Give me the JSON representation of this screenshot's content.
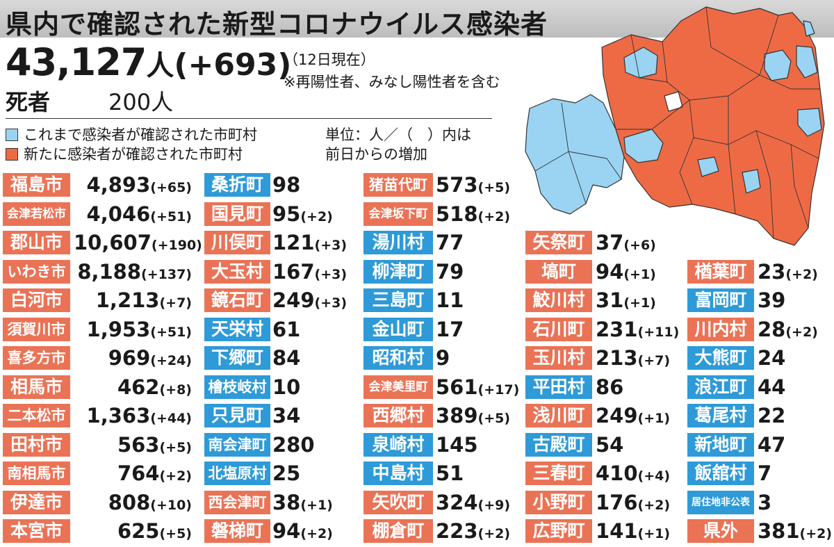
{
  "title": "県内で確認された新型コロナウイルス感染者",
  "total": {
    "count": "43,127",
    "unit": "人",
    "diff": "(+693)"
  },
  "as_of": "（12日現在）",
  "note": "※再陽性者、みなし陽性者を含む",
  "deaths": {
    "label": "死者",
    "value": "200人"
  },
  "legend": {
    "existing": "これまで感染者が確認された市町村",
    "new": "新たに感染者が確認された市町村"
  },
  "unit_note": {
    "line1": "単位：人／（　）内は",
    "line2": "前日からの増加"
  },
  "colors": {
    "new": "#ea7356",
    "existing": "#2e9ad8",
    "map_new": "#ee6a45",
    "map_existing": "#9ad4f2",
    "map_none": "#ffffff"
  },
  "columns": [
    [
      {
        "name": "福島市",
        "value": "4,893",
        "diff": "(+65)",
        "status": "new"
      },
      {
        "name": "会津若松市",
        "value": "4,046",
        "diff": "(+51)",
        "status": "new"
      },
      {
        "name": "郡山市",
        "value": "10,607",
        "diff": "(+190)",
        "status": "new"
      },
      {
        "name": "いわき市",
        "value": "8,188",
        "diff": "(+137)",
        "status": "new"
      },
      {
        "name": "白河市",
        "value": "1,213",
        "diff": "(+7)",
        "status": "new"
      },
      {
        "name": "須賀川市",
        "value": "1,953",
        "diff": "(+51)",
        "status": "new"
      },
      {
        "name": "喜多方市",
        "value": "969",
        "diff": "(+24)",
        "status": "new"
      },
      {
        "name": "相馬市",
        "value": "462",
        "diff": "(+8)",
        "status": "new"
      },
      {
        "name": "二本松市",
        "value": "1,363",
        "diff": "(+44)",
        "status": "new"
      },
      {
        "name": "田村市",
        "value": "563",
        "diff": "(+5)",
        "status": "new"
      },
      {
        "name": "南相馬市",
        "value": "764",
        "diff": "(+2)",
        "status": "new"
      },
      {
        "name": "伊達市",
        "value": "808",
        "diff": "(+10)",
        "status": "new"
      },
      {
        "name": "本宮市",
        "value": "625",
        "diff": "(+5)",
        "status": "new"
      }
    ],
    [
      {
        "name": "桑折町",
        "value": "98",
        "diff": "",
        "status": "existing"
      },
      {
        "name": "国見町",
        "value": "95",
        "diff": "(+2)",
        "status": "new"
      },
      {
        "name": "川俣町",
        "value": "121",
        "diff": "(+3)",
        "status": "new"
      },
      {
        "name": "大玉村",
        "value": "167",
        "diff": "(+3)",
        "status": "new"
      },
      {
        "name": "鏡石町",
        "value": "249",
        "diff": "(+3)",
        "status": "new"
      },
      {
        "name": "天栄村",
        "value": "61",
        "diff": "",
        "status": "existing"
      },
      {
        "name": "下郷町",
        "value": "84",
        "diff": "",
        "status": "existing"
      },
      {
        "name": "檜枝岐村",
        "value": "10",
        "diff": "",
        "status": "existing"
      },
      {
        "name": "只見町",
        "value": "34",
        "diff": "",
        "status": "existing"
      },
      {
        "name": "南会津町",
        "value": "280",
        "diff": "",
        "status": "existing"
      },
      {
        "name": "北塩原村",
        "value": "25",
        "diff": "",
        "status": "existing"
      },
      {
        "name": "西会津町",
        "value": "38",
        "diff": "(+1)",
        "status": "new"
      },
      {
        "name": "磐梯町",
        "value": "94",
        "diff": "(+2)",
        "status": "new"
      }
    ],
    [
      {
        "name": "猪苗代町",
        "value": "573",
        "diff": "(+5)",
        "status": "new"
      },
      {
        "name": "会津坂下町",
        "value": "518",
        "diff": "(+2)",
        "status": "new"
      },
      {
        "name": "湯川村",
        "value": "77",
        "diff": "",
        "status": "existing"
      },
      {
        "name": "柳津町",
        "value": "79",
        "diff": "",
        "status": "existing"
      },
      {
        "name": "三島町",
        "value": "11",
        "diff": "",
        "status": "existing"
      },
      {
        "name": "金山町",
        "value": "17",
        "diff": "",
        "status": "existing"
      },
      {
        "name": "昭和村",
        "value": "9",
        "diff": "",
        "status": "existing"
      },
      {
        "name": "会津美里町",
        "value": "561",
        "diff": "(+17)",
        "status": "new"
      },
      {
        "name": "西郷村",
        "value": "389",
        "diff": "(+5)",
        "status": "new"
      },
      {
        "name": "泉崎村",
        "value": "145",
        "diff": "",
        "status": "existing"
      },
      {
        "name": "中島村",
        "value": "51",
        "diff": "",
        "status": "existing"
      },
      {
        "name": "矢吹町",
        "value": "324",
        "diff": "(+9)",
        "status": "new"
      },
      {
        "name": "棚倉町",
        "value": "223",
        "diff": "(+2)",
        "status": "new"
      }
    ],
    [
      {
        "name": "矢祭町",
        "value": "37",
        "diff": "(+6)",
        "status": "new"
      },
      {
        "name": "塙町",
        "value": "94",
        "diff": "(+1)",
        "status": "new"
      },
      {
        "name": "鮫川村",
        "value": "31",
        "diff": "(+1)",
        "status": "new"
      },
      {
        "name": "石川町",
        "value": "231",
        "diff": "(+11)",
        "status": "new"
      },
      {
        "name": "玉川村",
        "value": "213",
        "diff": "(+7)",
        "status": "new"
      },
      {
        "name": "平田村",
        "value": "86",
        "diff": "",
        "status": "existing"
      },
      {
        "name": "浅川町",
        "value": "249",
        "diff": "(+1)",
        "status": "new"
      },
      {
        "name": "古殿町",
        "value": "54",
        "diff": "",
        "status": "existing"
      },
      {
        "name": "三春町",
        "value": "410",
        "diff": "(+4)",
        "status": "new"
      },
      {
        "name": "小野町",
        "value": "176",
        "diff": "(+2)",
        "status": "new"
      },
      {
        "name": "広野町",
        "value": "141",
        "diff": "(+1)",
        "status": "new"
      }
    ],
    [
      {
        "name": "楢葉町",
        "value": "23",
        "diff": "(+2)",
        "status": "new"
      },
      {
        "name": "富岡町",
        "value": "39",
        "diff": "",
        "status": "existing"
      },
      {
        "name": "川内村",
        "value": "28",
        "diff": "(+2)",
        "status": "new"
      },
      {
        "name": "大熊町",
        "value": "24",
        "diff": "",
        "status": "existing"
      },
      {
        "name": "浪江町",
        "value": "44",
        "diff": "",
        "status": "existing"
      },
      {
        "name": "葛尾村",
        "value": "22",
        "diff": "",
        "status": "existing"
      },
      {
        "name": "新地町",
        "value": "47",
        "diff": "",
        "status": "existing"
      },
      {
        "name": "飯舘村",
        "value": "7",
        "diff": "",
        "status": "existing"
      },
      {
        "name": "居住地非公表",
        "value": "3",
        "diff": "",
        "status": "existing"
      },
      {
        "name": "県外",
        "value": "381",
        "diff": "(+2)",
        "status": "new"
      }
    ]
  ]
}
